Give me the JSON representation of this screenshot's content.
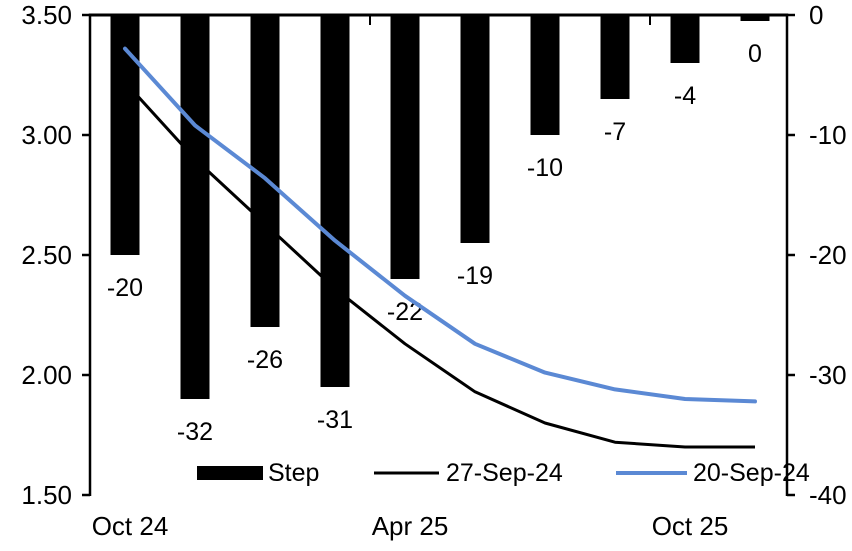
{
  "chart_data": {
    "type": "combo-bar-line",
    "title": "",
    "grid": false,
    "legend_position": "bottom",
    "bar_series": {
      "name": "Step",
      "axis": "right",
      "color": "#000000",
      "values": [
        -20,
        -32,
        -26,
        -31,
        -22,
        -19,
        -10,
        -7,
        -4,
        0
      ],
      "labels": [
        "-20",
        "-32",
        "-26",
        "-31",
        "-22",
        "-19",
        "-10",
        "-7",
        "-4",
        "0"
      ]
    },
    "line_series": [
      {
        "name": "27-Sep-24",
        "axis": "left",
        "color": "#000000",
        "stroke_width": 3,
        "values": [
          3.22,
          2.9,
          2.63,
          2.36,
          2.13,
          1.93,
          1.8,
          1.72,
          1.7,
          1.7
        ]
      },
      {
        "name": "20-Sep-24",
        "axis": "left",
        "color": "#5B89D4",
        "stroke_width": 4,
        "values": [
          3.36,
          3.04,
          2.82,
          2.56,
          2.33,
          2.13,
          2.01,
          1.94,
          1.9,
          1.89
        ]
      }
    ],
    "left_axis": {
      "max": 3.5,
      "min": 1.5,
      "tick_labels": [
        "3.50",
        "3.00",
        "2.50",
        "2.00",
        "1.50"
      ],
      "tick_values": [
        3.5,
        3.0,
        2.5,
        2.0,
        1.5
      ]
    },
    "right_axis": {
      "max": 0,
      "min": -40,
      "tick_labels": [
        "0",
        "-10",
        "-20",
        "-30",
        "-40"
      ],
      "tick_values": [
        0,
        -10,
        -20,
        -30,
        -40
      ]
    },
    "x_axis": {
      "tick_labels": [
        {
          "label": "Oct 24",
          "slot": 0
        },
        {
          "label": "Apr 25",
          "slot": 4
        },
        {
          "label": "Oct 25",
          "slot": 8
        }
      ],
      "boundary_tick_slots": [
        4,
        8
      ]
    },
    "legend": [
      {
        "label": "Step",
        "swatch": "bar",
        "color": "#000000"
      },
      {
        "label": "27-Sep-24",
        "swatch": "line",
        "color": "#000000"
      },
      {
        "label": "20-Sep-24",
        "swatch": "line",
        "color": "#5B89D4"
      }
    ]
  }
}
